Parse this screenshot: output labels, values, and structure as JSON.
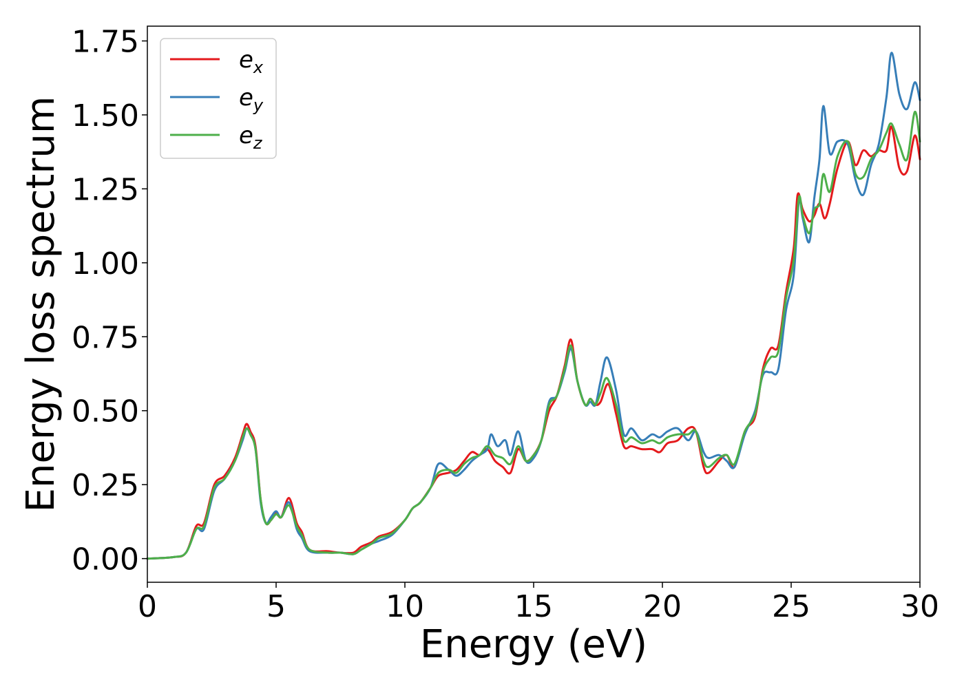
{
  "chart_data": {
    "type": "line",
    "title": "",
    "xlabel": "Energy (eV)",
    "ylabel": "Energy loss spectrum",
    "xlim": [
      0,
      30
    ],
    "ylim": [
      -0.08,
      1.8
    ],
    "xticks": [
      0,
      5,
      10,
      15,
      20,
      25,
      30
    ],
    "xtick_labels": [
      "0",
      "5",
      "10",
      "15",
      "20",
      "25",
      "30"
    ],
    "yticks": [
      0.0,
      0.25,
      0.5,
      0.75,
      1.0,
      1.25,
      1.5,
      1.75
    ],
    "ytick_labels": [
      "0.00",
      "0.25",
      "0.50",
      "0.75",
      "1.00",
      "1.25",
      "1.50",
      "1.75"
    ],
    "grid": false,
    "legend_position": "top-left",
    "series": [
      {
        "name": "e_x",
        "label_base": "e",
        "label_sub": "x",
        "color": "#e41a1c",
        "points": [
          [
            0,
            0
          ],
          [
            1,
            0.005
          ],
          [
            1.5,
            0.02
          ],
          [
            1.9,
            0.11
          ],
          [
            2.2,
            0.12
          ],
          [
            2.6,
            0.25
          ],
          [
            3.0,
            0.28
          ],
          [
            3.4,
            0.34
          ],
          [
            3.7,
            0.42
          ],
          [
            3.85,
            0.455
          ],
          [
            4.0,
            0.43
          ],
          [
            4.2,
            0.38
          ],
          [
            4.4,
            0.2
          ],
          [
            4.6,
            0.12
          ],
          [
            4.8,
            0.13
          ],
          [
            5.0,
            0.155
          ],
          [
            5.2,
            0.14
          ],
          [
            5.5,
            0.205
          ],
          [
            5.8,
            0.12
          ],
          [
            6.0,
            0.09
          ],
          [
            6.3,
            0.03
          ],
          [
            7.0,
            0.025
          ],
          [
            7.5,
            0.02
          ],
          [
            8.0,
            0.02
          ],
          [
            8.3,
            0.04
          ],
          [
            8.7,
            0.055
          ],
          [
            9.0,
            0.075
          ],
          [
            9.5,
            0.09
          ],
          [
            10.0,
            0.13
          ],
          [
            10.3,
            0.17
          ],
          [
            10.6,
            0.19
          ],
          [
            11.0,
            0.24
          ],
          [
            11.3,
            0.28
          ],
          [
            11.7,
            0.29
          ],
          [
            12.0,
            0.3
          ],
          [
            12.3,
            0.33
          ],
          [
            12.6,
            0.36
          ],
          [
            12.9,
            0.35
          ],
          [
            13.2,
            0.37
          ],
          [
            13.5,
            0.33
          ],
          [
            13.8,
            0.31
          ],
          [
            14.1,
            0.29
          ],
          [
            14.4,
            0.37
          ],
          [
            14.7,
            0.33
          ],
          [
            15.0,
            0.35
          ],
          [
            15.3,
            0.4
          ],
          [
            15.6,
            0.5
          ],
          [
            15.9,
            0.55
          ],
          [
            16.2,
            0.65
          ],
          [
            16.45,
            0.74
          ],
          [
            16.7,
            0.6
          ],
          [
            17.0,
            0.52
          ],
          [
            17.2,
            0.54
          ],
          [
            17.4,
            0.52
          ],
          [
            17.6,
            0.53
          ],
          [
            17.9,
            0.59
          ],
          [
            18.2,
            0.49
          ],
          [
            18.5,
            0.38
          ],
          [
            18.8,
            0.38
          ],
          [
            19.2,
            0.37
          ],
          [
            19.6,
            0.37
          ],
          [
            19.9,
            0.36
          ],
          [
            20.2,
            0.39
          ],
          [
            20.6,
            0.4
          ],
          [
            21.0,
            0.44
          ],
          [
            21.3,
            0.43
          ],
          [
            21.6,
            0.31
          ],
          [
            21.8,
            0.29
          ],
          [
            22.2,
            0.33
          ],
          [
            22.5,
            0.35
          ],
          [
            22.8,
            0.31
          ],
          [
            23.2,
            0.43
          ],
          [
            23.6,
            0.48
          ],
          [
            23.9,
            0.64
          ],
          [
            24.2,
            0.71
          ],
          [
            24.5,
            0.72
          ],
          [
            24.8,
            0.9
          ],
          [
            25.1,
            1.05
          ],
          [
            25.25,
            1.23
          ],
          [
            25.45,
            1.18
          ],
          [
            25.7,
            1.14
          ],
          [
            25.9,
            1.16
          ],
          [
            26.1,
            1.2
          ],
          [
            26.3,
            1.15
          ],
          [
            26.5,
            1.2
          ],
          [
            26.8,
            1.32
          ],
          [
            27.2,
            1.41
          ],
          [
            27.5,
            1.33
          ],
          [
            27.8,
            1.38
          ],
          [
            28.1,
            1.36
          ],
          [
            28.4,
            1.38
          ],
          [
            28.7,
            1.38
          ],
          [
            28.9,
            1.46
          ],
          [
            29.2,
            1.32
          ],
          [
            29.5,
            1.31
          ],
          [
            29.8,
            1.43
          ],
          [
            30.0,
            1.35
          ]
        ]
      },
      {
        "name": "e_y",
        "label_base": "e",
        "label_sub": "y",
        "color": "#377eb8",
        "points": [
          [
            0,
            0
          ],
          [
            1,
            0.005
          ],
          [
            1.5,
            0.02
          ],
          [
            1.9,
            0.1
          ],
          [
            2.2,
            0.1
          ],
          [
            2.6,
            0.23
          ],
          [
            3.0,
            0.27
          ],
          [
            3.4,
            0.33
          ],
          [
            3.7,
            0.4
          ],
          [
            3.85,
            0.44
          ],
          [
            4.0,
            0.42
          ],
          [
            4.2,
            0.37
          ],
          [
            4.4,
            0.19
          ],
          [
            4.6,
            0.12
          ],
          [
            4.8,
            0.14
          ],
          [
            5.0,
            0.16
          ],
          [
            5.2,
            0.14
          ],
          [
            5.5,
            0.19
          ],
          [
            5.8,
            0.1
          ],
          [
            6.0,
            0.07
          ],
          [
            6.3,
            0.025
          ],
          [
            7.0,
            0.02
          ],
          [
            7.5,
            0.02
          ],
          [
            8.0,
            0.015
          ],
          [
            8.3,
            0.03
          ],
          [
            8.7,
            0.05
          ],
          [
            9.0,
            0.06
          ],
          [
            9.5,
            0.08
          ],
          [
            10.0,
            0.13
          ],
          [
            10.3,
            0.17
          ],
          [
            10.6,
            0.19
          ],
          [
            11.0,
            0.24
          ],
          [
            11.3,
            0.32
          ],
          [
            11.7,
            0.3
          ],
          [
            12.0,
            0.28
          ],
          [
            12.3,
            0.3
          ],
          [
            12.6,
            0.33
          ],
          [
            12.9,
            0.35
          ],
          [
            13.2,
            0.37
          ],
          [
            13.35,
            0.42
          ],
          [
            13.6,
            0.38
          ],
          [
            13.9,
            0.4
          ],
          [
            14.1,
            0.35
          ],
          [
            14.4,
            0.43
          ],
          [
            14.7,
            0.33
          ],
          [
            15.0,
            0.34
          ],
          [
            15.3,
            0.4
          ],
          [
            15.6,
            0.53
          ],
          [
            15.9,
            0.55
          ],
          [
            16.2,
            0.63
          ],
          [
            16.45,
            0.71
          ],
          [
            16.7,
            0.6
          ],
          [
            17.0,
            0.52
          ],
          [
            17.2,
            0.53
          ],
          [
            17.4,
            0.52
          ],
          [
            17.6,
            0.6
          ],
          [
            17.85,
            0.68
          ],
          [
            18.2,
            0.57
          ],
          [
            18.5,
            0.42
          ],
          [
            18.8,
            0.44
          ],
          [
            19.2,
            0.4
          ],
          [
            19.6,
            0.42
          ],
          [
            19.9,
            0.41
          ],
          [
            20.2,
            0.43
          ],
          [
            20.6,
            0.44
          ],
          [
            21.0,
            0.4
          ],
          [
            21.3,
            0.43
          ],
          [
            21.6,
            0.36
          ],
          [
            21.8,
            0.34
          ],
          [
            22.2,
            0.35
          ],
          [
            22.5,
            0.33
          ],
          [
            22.8,
            0.31
          ],
          [
            23.2,
            0.42
          ],
          [
            23.6,
            0.5
          ],
          [
            23.9,
            0.62
          ],
          [
            24.2,
            0.63
          ],
          [
            24.5,
            0.64
          ],
          [
            24.8,
            0.84
          ],
          [
            25.1,
            0.96
          ],
          [
            25.3,
            1.21
          ],
          [
            25.45,
            1.15
          ],
          [
            25.7,
            1.07
          ],
          [
            25.9,
            1.22
          ],
          [
            26.1,
            1.35
          ],
          [
            26.25,
            1.53
          ],
          [
            26.5,
            1.37
          ],
          [
            26.8,
            1.41
          ],
          [
            27.2,
            1.4
          ],
          [
            27.5,
            1.28
          ],
          [
            27.8,
            1.23
          ],
          [
            28.1,
            1.33
          ],
          [
            28.4,
            1.4
          ],
          [
            28.7,
            1.56
          ],
          [
            28.9,
            1.71
          ],
          [
            29.2,
            1.57
          ],
          [
            29.5,
            1.52
          ],
          [
            29.8,
            1.61
          ],
          [
            30.0,
            1.55
          ]
        ]
      },
      {
        "name": "e_z",
        "label_base": "e",
        "label_sub": "z",
        "color": "#4daf4a",
        "points": [
          [
            0,
            0
          ],
          [
            1,
            0.005
          ],
          [
            1.5,
            0.02
          ],
          [
            1.9,
            0.1
          ],
          [
            2.2,
            0.11
          ],
          [
            2.6,
            0.24
          ],
          [
            3.0,
            0.27
          ],
          [
            3.4,
            0.33
          ],
          [
            3.7,
            0.41
          ],
          [
            3.85,
            0.44
          ],
          [
            4.0,
            0.42
          ],
          [
            4.2,
            0.37
          ],
          [
            4.4,
            0.2
          ],
          [
            4.6,
            0.12
          ],
          [
            4.8,
            0.13
          ],
          [
            5.0,
            0.15
          ],
          [
            5.2,
            0.14
          ],
          [
            5.5,
            0.18
          ],
          [
            5.8,
            0.11
          ],
          [
            6.0,
            0.08
          ],
          [
            6.3,
            0.03
          ],
          [
            7.0,
            0.02
          ],
          [
            7.5,
            0.02
          ],
          [
            8.0,
            0.015
          ],
          [
            8.3,
            0.03
          ],
          [
            8.7,
            0.05
          ],
          [
            9.0,
            0.07
          ],
          [
            9.5,
            0.085
          ],
          [
            10.0,
            0.13
          ],
          [
            10.3,
            0.17
          ],
          [
            10.6,
            0.19
          ],
          [
            11.0,
            0.24
          ],
          [
            11.3,
            0.29
          ],
          [
            11.7,
            0.3
          ],
          [
            12.0,
            0.29
          ],
          [
            12.3,
            0.32
          ],
          [
            12.6,
            0.34
          ],
          [
            12.9,
            0.35
          ],
          [
            13.2,
            0.38
          ],
          [
            13.5,
            0.35
          ],
          [
            13.8,
            0.34
          ],
          [
            14.1,
            0.32
          ],
          [
            14.4,
            0.38
          ],
          [
            14.7,
            0.33
          ],
          [
            15.0,
            0.35
          ],
          [
            15.3,
            0.4
          ],
          [
            15.6,
            0.52
          ],
          [
            15.9,
            0.55
          ],
          [
            16.2,
            0.64
          ],
          [
            16.45,
            0.72
          ],
          [
            16.7,
            0.6
          ],
          [
            17.0,
            0.52
          ],
          [
            17.2,
            0.54
          ],
          [
            17.4,
            0.52
          ],
          [
            17.6,
            0.56
          ],
          [
            17.85,
            0.61
          ],
          [
            18.2,
            0.52
          ],
          [
            18.5,
            0.4
          ],
          [
            18.8,
            0.41
          ],
          [
            19.2,
            0.39
          ],
          [
            19.6,
            0.4
          ],
          [
            19.9,
            0.39
          ],
          [
            20.2,
            0.41
          ],
          [
            20.6,
            0.42
          ],
          [
            21.0,
            0.42
          ],
          [
            21.3,
            0.43
          ],
          [
            21.6,
            0.33
          ],
          [
            21.8,
            0.31
          ],
          [
            22.2,
            0.34
          ],
          [
            22.5,
            0.35
          ],
          [
            22.8,
            0.32
          ],
          [
            23.2,
            0.43
          ],
          [
            23.6,
            0.49
          ],
          [
            23.9,
            0.63
          ],
          [
            24.2,
            0.68
          ],
          [
            24.5,
            0.7
          ],
          [
            24.8,
            0.88
          ],
          [
            25.1,
            1.01
          ],
          [
            25.3,
            1.22
          ],
          [
            25.45,
            1.16
          ],
          [
            25.7,
            1.1
          ],
          [
            25.9,
            1.18
          ],
          [
            26.1,
            1.2
          ],
          [
            26.25,
            1.3
          ],
          [
            26.5,
            1.24
          ],
          [
            26.8,
            1.36
          ],
          [
            27.2,
            1.41
          ],
          [
            27.5,
            1.3
          ],
          [
            27.8,
            1.29
          ],
          [
            28.1,
            1.35
          ],
          [
            28.4,
            1.38
          ],
          [
            28.7,
            1.44
          ],
          [
            28.9,
            1.47
          ],
          [
            29.2,
            1.4
          ],
          [
            29.5,
            1.35
          ],
          [
            29.8,
            1.51
          ],
          [
            30.0,
            1.41
          ]
        ]
      }
    ]
  }
}
